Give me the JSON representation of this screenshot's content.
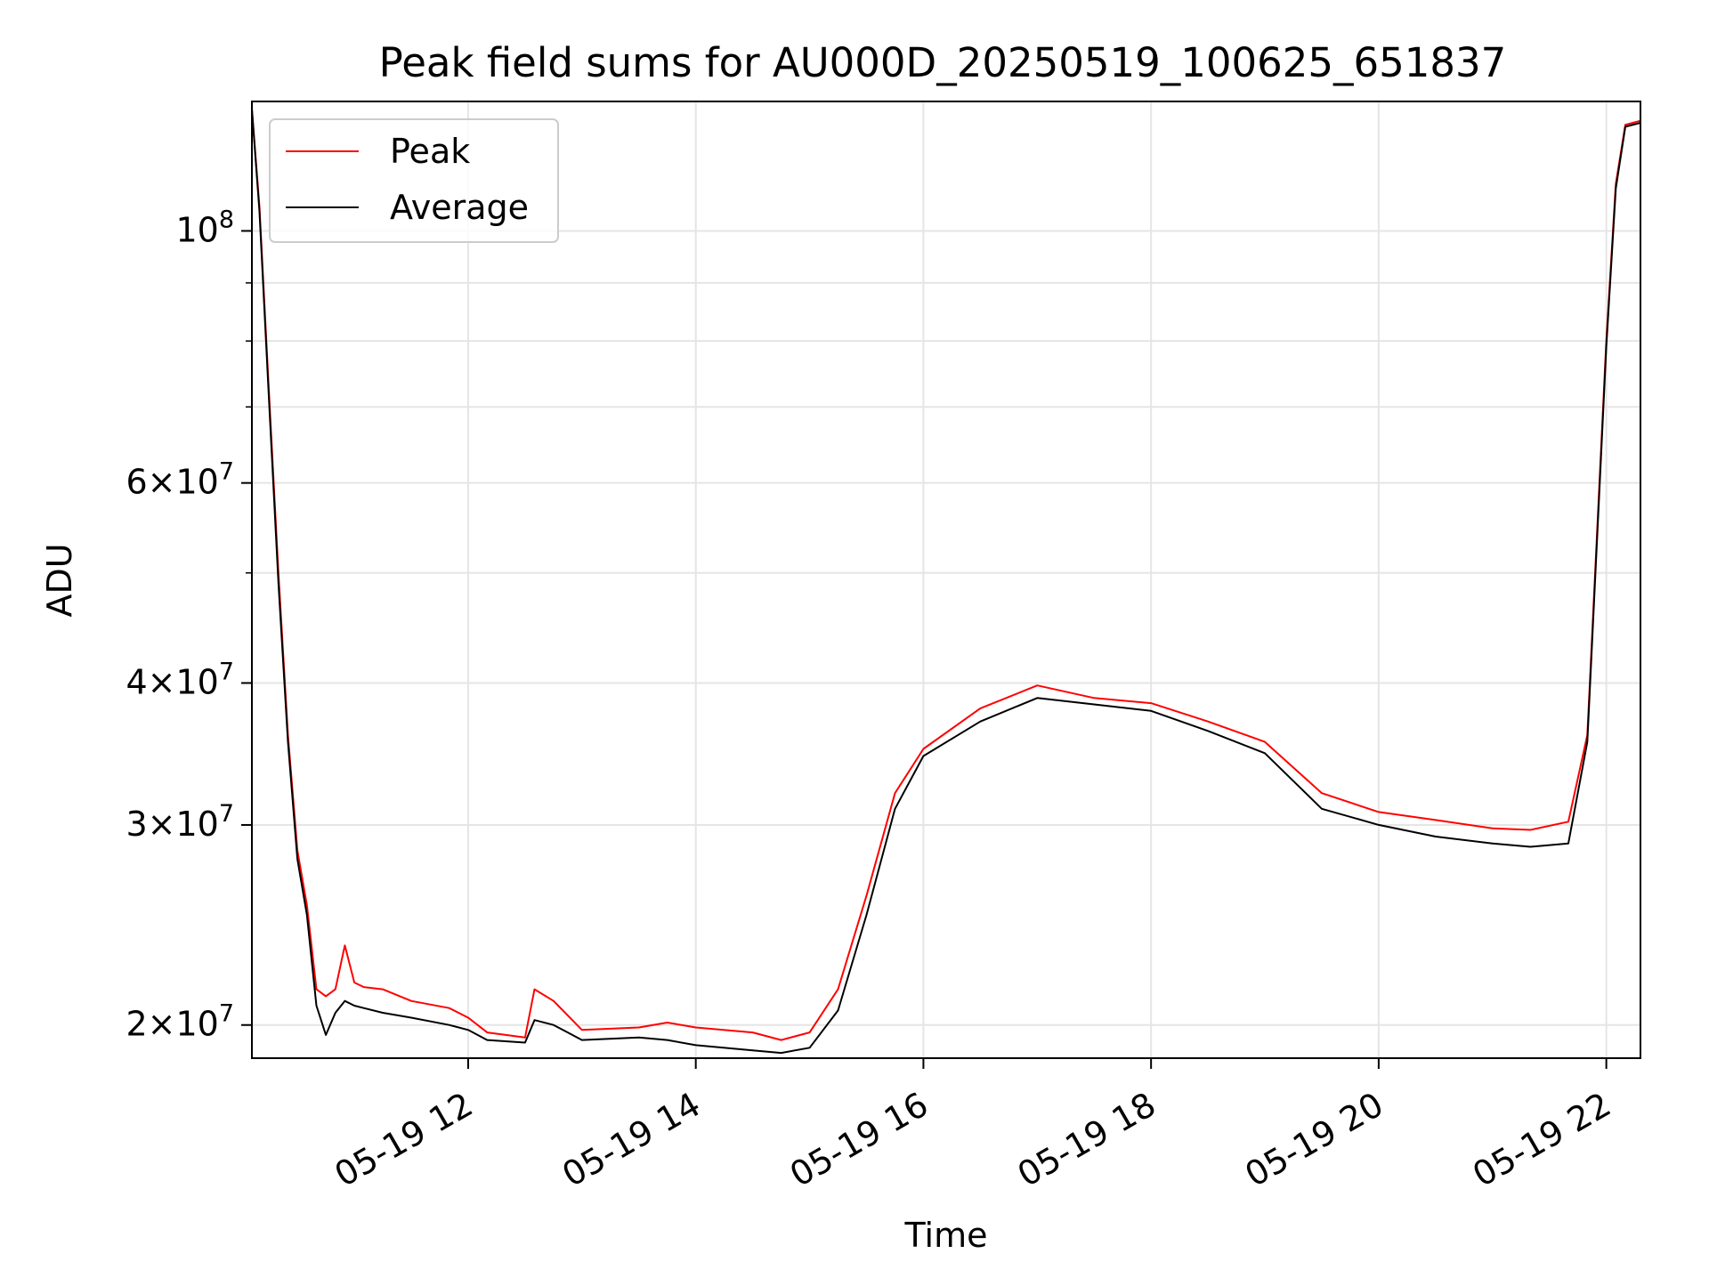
{
  "chart_data": {
    "type": "line",
    "title": "Peak field sums for AU000D_20250519_100625_651837",
    "xlabel": "Time",
    "ylabel": "ADU",
    "y_scale": "log",
    "grid": true,
    "legend_position": "top-left",
    "xlim": [
      "2025-05-19 10:06",
      "2025-05-19 22:18"
    ],
    "ylim": [
      18700000,
      130000000
    ],
    "x_ticks": [
      "2025-05-19 12:00",
      "2025-05-19 14:00",
      "2025-05-19 16:00",
      "2025-05-19 18:00",
      "2025-05-19 20:00",
      "2025-05-19 22:00"
    ],
    "x_tick_labels": [
      "05-19 12",
      "05-19 14",
      "05-19 16",
      "05-19 18",
      "05-19 20",
      "05-19 22"
    ],
    "y_ticks": [
      {
        "value": 20000000,
        "mant": "2",
        "exp": "7"
      },
      {
        "value": 30000000,
        "mant": "3",
        "exp": "7"
      },
      {
        "value": 40000000,
        "mant": "4",
        "exp": "7"
      },
      {
        "value": 60000000,
        "mant": "6",
        "exp": "7"
      },
      {
        "value": 100000000,
        "mant": "",
        "exp": "8"
      }
    ],
    "y_minor_ticks": [
      50000000,
      70000000,
      80000000,
      90000000
    ],
    "series": [
      {
        "name": "Peak",
        "color": "#ff0000",
        "x": [
          "2025-05-19 10:06",
          "2025-05-19 10:10",
          "2025-05-19 10:15",
          "2025-05-19 10:20",
          "2025-05-19 10:25",
          "2025-05-19 10:30",
          "2025-05-19 10:35",
          "2025-05-19 10:40",
          "2025-05-19 10:45",
          "2025-05-19 10:50",
          "2025-05-19 10:55",
          "2025-05-19 11:00",
          "2025-05-19 11:05",
          "2025-05-19 11:15",
          "2025-05-19 11:30",
          "2025-05-19 11:50",
          "2025-05-19 12:00",
          "2025-05-19 12:10",
          "2025-05-19 12:30",
          "2025-05-19 12:35",
          "2025-05-19 12:45",
          "2025-05-19 13:00",
          "2025-05-19 13:30",
          "2025-05-19 13:45",
          "2025-05-19 14:00",
          "2025-05-19 14:30",
          "2025-05-19 14:45",
          "2025-05-19 15:00",
          "2025-05-19 15:15",
          "2025-05-19 15:30",
          "2025-05-19 15:45",
          "2025-05-19 16:00",
          "2025-05-19 16:30",
          "2025-05-19 17:00",
          "2025-05-19 17:30",
          "2025-05-19 18:00",
          "2025-05-19 18:30",
          "2025-05-19 19:00",
          "2025-05-19 19:30",
          "2025-05-19 20:00",
          "2025-05-19 20:30",
          "2025-05-19 21:00",
          "2025-05-19 21:20",
          "2025-05-19 21:40",
          "2025-05-19 21:50",
          "2025-05-19 22:00",
          "2025-05-19 22:05",
          "2025-05-19 22:10",
          "2025-05-19 22:18"
        ],
        "values": [
          128000000,
          105000000,
          72000000,
          50000000,
          36000000,
          28500000,
          25500000,
          21500000,
          21200000,
          21500000,
          23500000,
          21800000,
          21600000,
          21500000,
          21000000,
          20700000,
          20300000,
          19700000,
          19500000,
          21500000,
          21000000,
          19800000,
          19900000,
          20100000,
          19900000,
          19700000,
          19400000,
          19700000,
          21500000,
          26000000,
          32000000,
          35000000,
          38000000,
          39800000,
          38800000,
          38400000,
          37000000,
          35500000,
          32000000,
          30800000,
          30300000,
          29800000,
          29700000,
          30200000,
          36000000,
          80000000,
          110000000,
          124000000,
          125000000
        ]
      },
      {
        "name": "Average",
        "color": "#000000",
        "x": [
          "2025-05-19 10:06",
          "2025-05-19 10:10",
          "2025-05-19 10:15",
          "2025-05-19 10:20",
          "2025-05-19 10:25",
          "2025-05-19 10:30",
          "2025-05-19 10:35",
          "2025-05-19 10:40",
          "2025-05-19 10:45",
          "2025-05-19 10:50",
          "2025-05-19 10:55",
          "2025-05-19 11:00",
          "2025-05-19 11:05",
          "2025-05-19 11:15",
          "2025-05-19 11:30",
          "2025-05-19 11:50",
          "2025-05-19 12:00",
          "2025-05-19 12:10",
          "2025-05-19 12:30",
          "2025-05-19 12:35",
          "2025-05-19 12:45",
          "2025-05-19 13:00",
          "2025-05-19 13:30",
          "2025-05-19 13:45",
          "2025-05-19 14:00",
          "2025-05-19 14:30",
          "2025-05-19 14:45",
          "2025-05-19 15:00",
          "2025-05-19 15:15",
          "2025-05-19 15:30",
          "2025-05-19 15:45",
          "2025-05-19 16:00",
          "2025-05-19 16:30",
          "2025-05-19 17:00",
          "2025-05-19 17:30",
          "2025-05-19 18:00",
          "2025-05-19 18:30",
          "2025-05-19 19:00",
          "2025-05-19 19:30",
          "2025-05-19 20:00",
          "2025-05-19 20:30",
          "2025-05-19 21:00",
          "2025-05-19 21:20",
          "2025-05-19 21:40",
          "2025-05-19 21:50",
          "2025-05-19 22:00",
          "2025-05-19 22:05",
          "2025-05-19 22:10",
          "2025-05-19 22:18"
        ],
        "values": [
          128000000,
          104000000,
          71000000,
          49000000,
          35500000,
          28000000,
          25000000,
          20800000,
          19600000,
          20500000,
          21000000,
          20800000,
          20700000,
          20500000,
          20300000,
          20000000,
          19800000,
          19400000,
          19300000,
          20200000,
          20000000,
          19400000,
          19500000,
          19400000,
          19200000,
          19000000,
          18900000,
          19100000,
          20600000,
          25000000,
          31000000,
          34500000,
          37000000,
          38800000,
          38300000,
          37800000,
          36300000,
          34700000,
          31000000,
          30000000,
          29300000,
          28900000,
          28700000,
          28900000,
          35500000,
          79000000,
          109000000,
          123500000,
          124500000
        ]
      }
    ]
  }
}
